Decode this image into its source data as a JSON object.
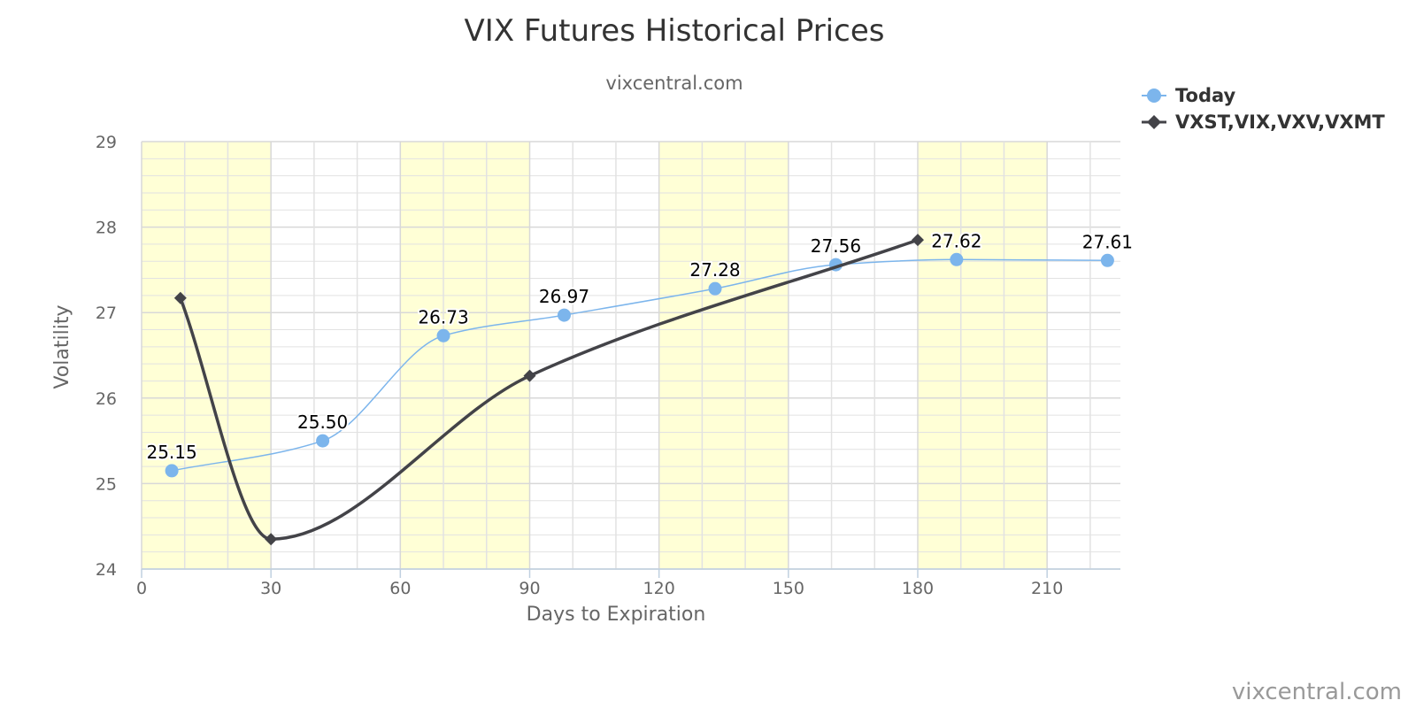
{
  "chart_data": {
    "type": "line",
    "title": "VIX Futures Historical Prices",
    "subtitle": "vixcentral.com",
    "xlabel": "Days to Expiration",
    "ylabel": "Volatility",
    "xlim": [
      0,
      227
    ],
    "ylim": [
      24,
      29
    ],
    "x_ticks": [
      0,
      30,
      60,
      90,
      120,
      150,
      180,
      210
    ],
    "x_tick_labels": [
      "0",
      "30",
      "60",
      "90",
      "120",
      "150",
      "180",
      "210"
    ],
    "y_ticks": [
      24,
      25,
      26,
      27,
      28,
      29
    ],
    "y_tick_labels": [
      "24",
      "25",
      "26",
      "27",
      "28",
      "29"
    ],
    "highlight_bands": [
      [
        0,
        30
      ],
      [
        60,
        90
      ],
      [
        120,
        150
      ],
      [
        180,
        210
      ]
    ],
    "grid": true,
    "legend_position": "top-right",
    "series": [
      {
        "name": "Today",
        "color": "#7cb5ec",
        "marker": "circle",
        "points": [
          {
            "x": 7,
            "y": 25.15,
            "label": "25.15"
          },
          {
            "x": 42,
            "y": 25.5,
            "label": "25.50"
          },
          {
            "x": 70,
            "y": 26.73,
            "label": "26.73"
          },
          {
            "x": 98,
            "y": 26.97,
            "label": "26.97"
          },
          {
            "x": 133,
            "y": 27.28,
            "label": "27.28"
          },
          {
            "x": 161,
            "y": 27.56,
            "label": "27.56"
          },
          {
            "x": 189,
            "y": 27.62,
            "label": "27.62"
          },
          {
            "x": 224,
            "y": 27.61,
            "label": "27.61"
          }
        ]
      },
      {
        "name": "VXST,VIX,VXV,VXMT",
        "color": "#434348",
        "marker": "diamond",
        "points": [
          {
            "x": 9,
            "y": 27.17
          },
          {
            "x": 30,
            "y": 24.35
          },
          {
            "x": 90,
            "y": 26.26
          },
          {
            "x": 180,
            "y": 27.85
          }
        ]
      }
    ]
  },
  "credits": "vixcentral.com"
}
